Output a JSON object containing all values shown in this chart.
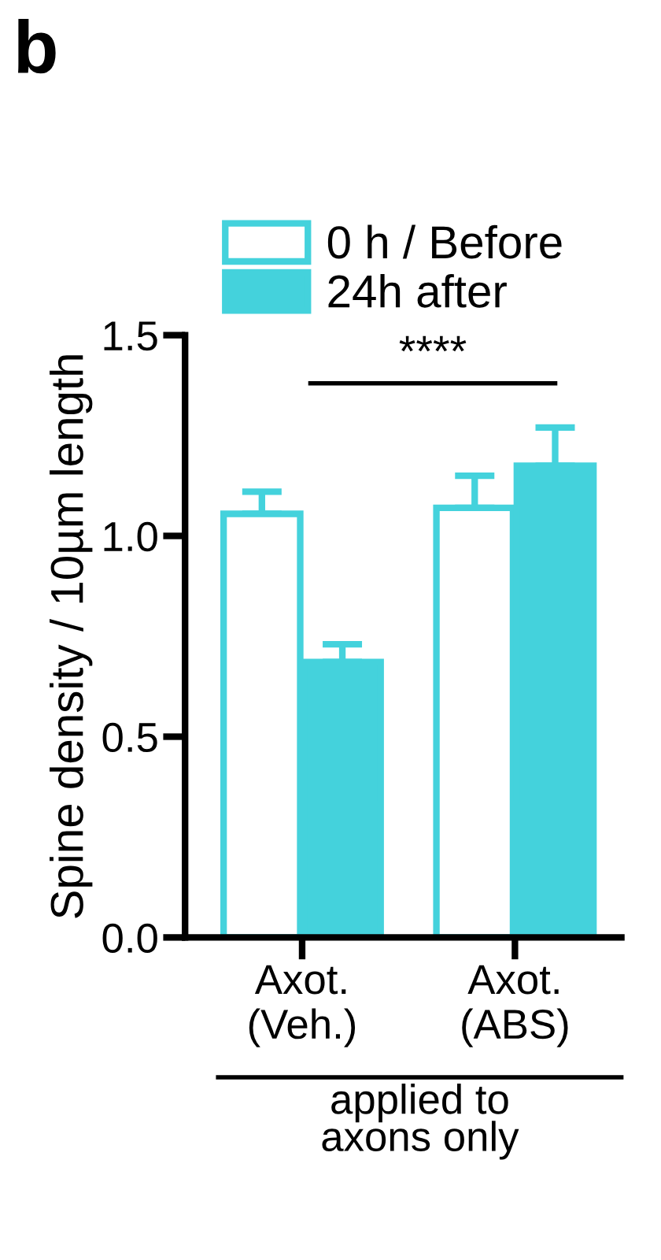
{
  "chart_data": {
    "type": "bar",
    "title": "b",
    "ylabel": "Spine density / 10µm length",
    "categories": [
      "Axot.\n(Veh.)",
      "Axot.\n(ABS)"
    ],
    "series": [
      {
        "name": "0 h / Before",
        "color": "#ffffff",
        "values": [
          1.055,
          1.07
        ],
        "errors": [
          [
            1.055,
            1.11
          ],
          [
            1.07,
            1.15
          ]
        ]
      },
      {
        "name": "24h after",
        "color": "#44d2dc",
        "values": [
          0.686,
          1.175
        ],
        "errors": [
          [
            0.686,
            0.73
          ],
          [
            1.175,
            1.27
          ]
        ]
      }
    ],
    "ylim": [
      0,
      1.5
    ],
    "yticks": [
      {
        "value": 0,
        "label": "0.0"
      },
      0.5,
      {
        "value": 1,
        "label": "1.0"
      },
      1.5
    ],
    "grid": false,
    "legend": "top left",
    "annotations": [
      "****",
      "applied to\naxons only"
    ]
  }
}
